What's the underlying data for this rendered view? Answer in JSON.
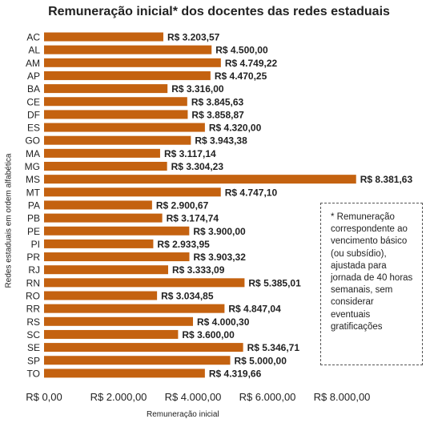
{
  "chart_data": {
    "type": "bar",
    "orientation": "horizontal",
    "title": "Remuneração inicial* dos docentes das redes estaduais",
    "xlabel": "Remuneração inicial",
    "ylabel": "Redes estaduais em ordem alfabética",
    "categories": [
      "AC",
      "AL",
      "AM",
      "AP",
      "BA",
      "CE",
      "DF",
      "ES",
      "GO",
      "MA",
      "MG",
      "MS",
      "MT",
      "PA",
      "PB",
      "PE",
      "PI",
      "PR",
      "RJ",
      "RN",
      "RO",
      "RR",
      "RS",
      "SC",
      "SE",
      "SP",
      "TO"
    ],
    "values": [
      3203.57,
      4500.0,
      4749.22,
      4470.25,
      3316.0,
      3845.63,
      3858.87,
      4320.0,
      3943.38,
      3117.14,
      3304.23,
      8381.63,
      4747.1,
      2900.67,
      3174.74,
      3900.0,
      2933.95,
      3903.32,
      3333.09,
      5385.01,
      3034.85,
      4847.04,
      4000.3,
      3600.0,
      5346.71,
      5000.0,
      4319.66
    ],
    "value_labels": [
      "R$ 3.203,57",
      "R$ 4.500,00",
      "R$ 4.749,22",
      "R$ 4.470,25",
      "R$ 3.316,00",
      "R$ 3.845,63",
      "R$ 3.858,87",
      "R$ 4.320,00",
      "R$ 3.943,38",
      "R$ 3.117,14",
      "R$ 3.304,23",
      "R$ 8.381,63",
      "R$ 4.747,10",
      "R$ 2.900,67",
      "R$ 3.174,74",
      "R$ 3.900,00",
      "R$ 2.933,95",
      "R$ 3.903,32",
      "R$ 3.333,09",
      "R$ 5.385,01",
      "R$ 3.034,85",
      "R$ 4.847,04",
      "R$ 4.000,30",
      "R$ 3.600,00",
      "R$ 5.346,71",
      "R$ 5.000,00",
      "R$ 4.319,66"
    ],
    "xlim": [
      0,
      8000
    ],
    "xticks": [
      0,
      2000,
      4000,
      6000,
      8000
    ],
    "xtick_labels": [
      "R$ 0,00",
      "R$ 2.000,00",
      "R$ 4.000,00",
      "R$ 6.000,00",
      "R$ 8.000,00"
    ],
    "bar_color": "#c46210",
    "grid": false,
    "annotation": "* Remuneração correspondente ao vencimento básico (ou subsídio), ajustada para jornada de 40 horas semanais, sem considerar eventuais gratificações"
  }
}
